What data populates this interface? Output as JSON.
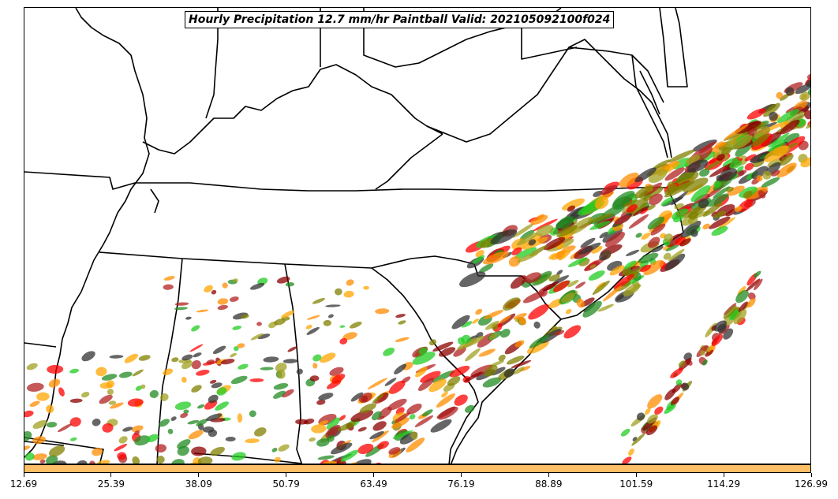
{
  "map": {
    "title": "Hourly Precipitation 12.7 mm/hr Paintball Valid: 202105092100f024",
    "paint_colors": [
      "#ff0000",
      "#22cc22",
      "#8b0000",
      "#808000",
      "#ff8c00",
      "#ffa500",
      "#333333",
      "#228b22",
      "#b22222",
      "#a0a020"
    ]
  },
  "colorbar": {
    "color": "#ffbf66",
    "ticks": [
      "12.69",
      "25.39",
      "38.09",
      "50.79",
      "63.49",
      "76.19",
      "88.89",
      "101.59",
      "114.29",
      "126.99"
    ]
  }
}
